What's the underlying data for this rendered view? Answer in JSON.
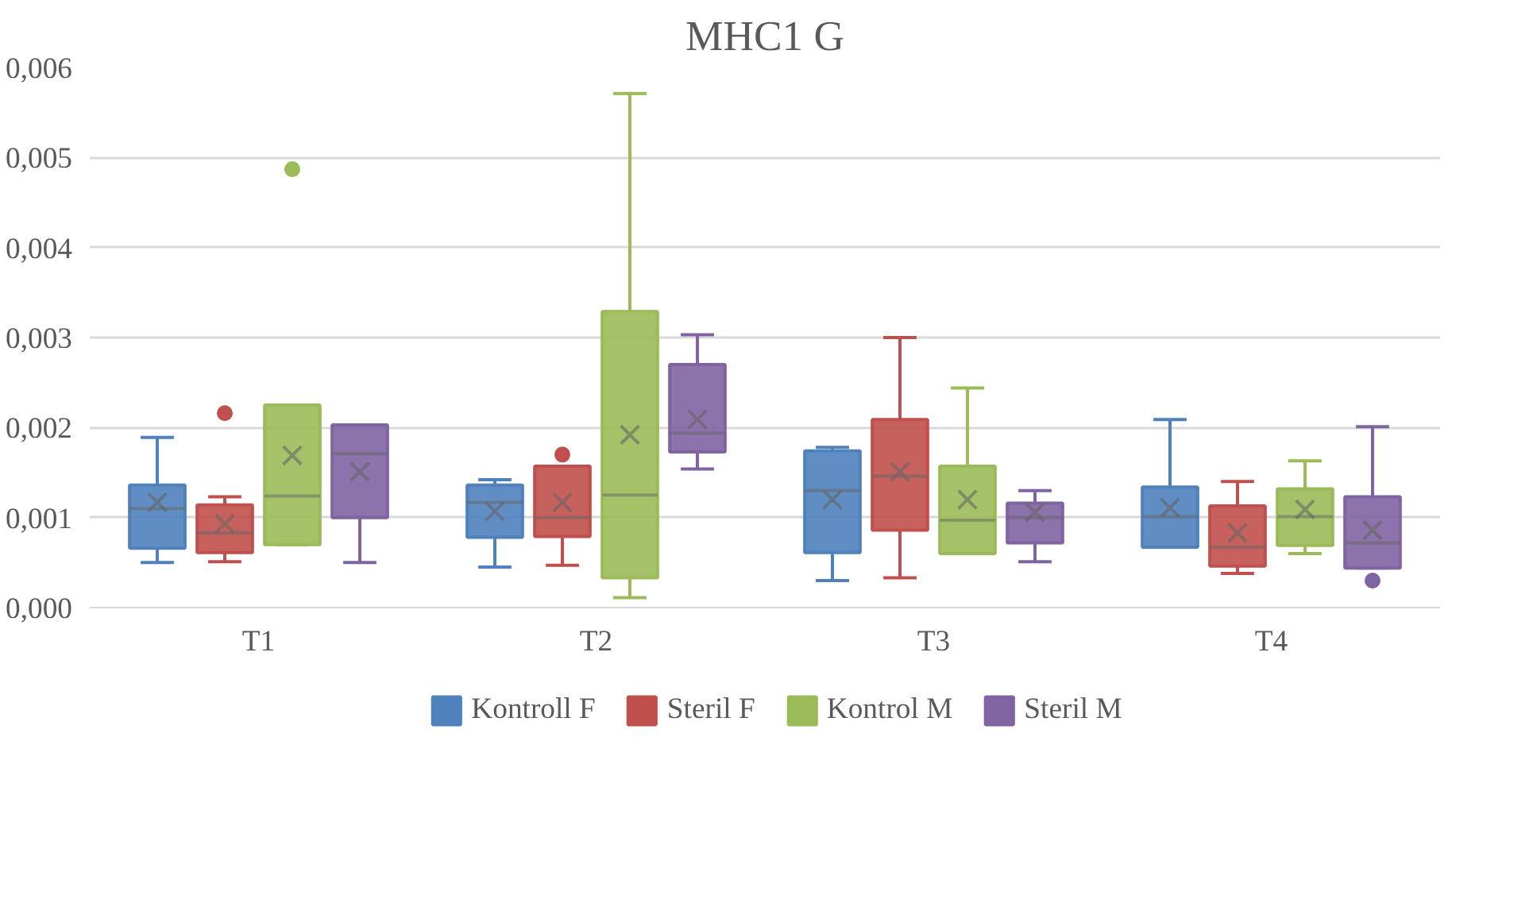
{
  "chart_data": {
    "type": "box",
    "title": "MHC1 G",
    "categories": [
      "T1",
      "T2",
      "T3",
      "T4"
    ],
    "ylim": [
      0,
      0.006
    ],
    "yticks": [
      {
        "value": 0,
        "label": "0,000"
      },
      {
        "value": 0.001,
        "label": "0,001"
      },
      {
        "value": 0.002,
        "label": "0,002"
      },
      {
        "value": 0.003,
        "label": "0,003"
      },
      {
        "value": 0.004,
        "label": "0,004"
      },
      {
        "value": 0.005,
        "label": "0,005"
      },
      {
        "value": 0.006,
        "label": "0,006"
      }
    ],
    "grid": "y",
    "legend": "bottom",
    "series": [
      {
        "name": "Kontroll F",
        "color": "#4f81bd",
        "boxes": [
          {
            "low": 0.0005,
            "q1": 0.00066,
            "median": 0.0011,
            "q3": 0.00136,
            "high": 0.00189,
            "mean": 0.00117
          },
          {
            "low": 0.00045,
            "q1": 0.00078,
            "median": 0.00117,
            "q3": 0.00136,
            "high": 0.00142,
            "mean": 0.00107
          },
          {
            "low": 0.0003,
            "q1": 0.00061,
            "median": 0.0013,
            "q3": 0.00174,
            "high": 0.00178,
            "mean": 0.0012
          },
          {
            "low": 0.00067,
            "q1": 0.00067,
            "median": 0.00101,
            "q3": 0.00134,
            "high": 0.00209,
            "mean": 0.00111
          }
        ]
      },
      {
        "name": "Steril F",
        "color": "#c0504d",
        "boxes": [
          {
            "low": 0.00051,
            "q1": 0.00061,
            "median": 0.00083,
            "q3": 0.00114,
            "high": 0.00123,
            "mean": 0.00093,
            "outliers": [
              0.00216
            ]
          },
          {
            "low": 0.00047,
            "q1": 0.00079,
            "median": 0.001,
            "q3": 0.00157,
            "high": 0.00157,
            "mean": 0.00117,
            "outliers": [
              0.0017
            ]
          },
          {
            "low": 0.00033,
            "q1": 0.00086,
            "median": 0.00146,
            "q3": 0.00209,
            "high": 0.003,
            "mean": 0.00151
          },
          {
            "low": 0.00038,
            "q1": 0.00046,
            "median": 0.00067,
            "q3": 0.00113,
            "high": 0.0014,
            "mean": 0.00083
          }
        ]
      },
      {
        "name": "Kontrol M",
        "color": "#9bbb59",
        "boxes": [
          {
            "low": 0.0007,
            "q1": 0.0007,
            "median": 0.00124,
            "q3": 0.00225,
            "high": 0.00225,
            "mean": 0.00169,
            "outliers": [
              0.00487
            ]
          },
          {
            "low": 0.00011,
            "q1": 0.00033,
            "median": 0.00125,
            "q3": 0.00329,
            "high": 0.00571,
            "mean": 0.00192
          },
          {
            "low": 0.0006,
            "q1": 0.0006,
            "median": 0.00097,
            "q3": 0.00157,
            "high": 0.00244,
            "mean": 0.0012
          },
          {
            "low": 0.0006,
            "q1": 0.00069,
            "median": 0.00101,
            "q3": 0.00132,
            "high": 0.00163,
            "mean": 0.00109
          }
        ]
      },
      {
        "name": "Steril M",
        "color": "#8064a2",
        "boxes": [
          {
            "low": 0.0005,
            "q1": 0.001,
            "median": 0.00171,
            "q3": 0.00203,
            "high": 0.00203,
            "mean": 0.00151
          },
          {
            "low": 0.00154,
            "q1": 0.00173,
            "median": 0.00194,
            "q3": 0.0027,
            "high": 0.00303,
            "mean": 0.00209
          },
          {
            "low": 0.00051,
            "q1": 0.00072,
            "median": 0.001,
            "q3": 0.00116,
            "high": 0.0013,
            "mean": 0.00106
          },
          {
            "low": 0.00044,
            "q1": 0.00044,
            "median": 0.00072,
            "q3": 0.00123,
            "high": 0.00201,
            "mean": 0.00086,
            "outliers": [
              0.0003
            ]
          }
        ]
      }
    ]
  }
}
